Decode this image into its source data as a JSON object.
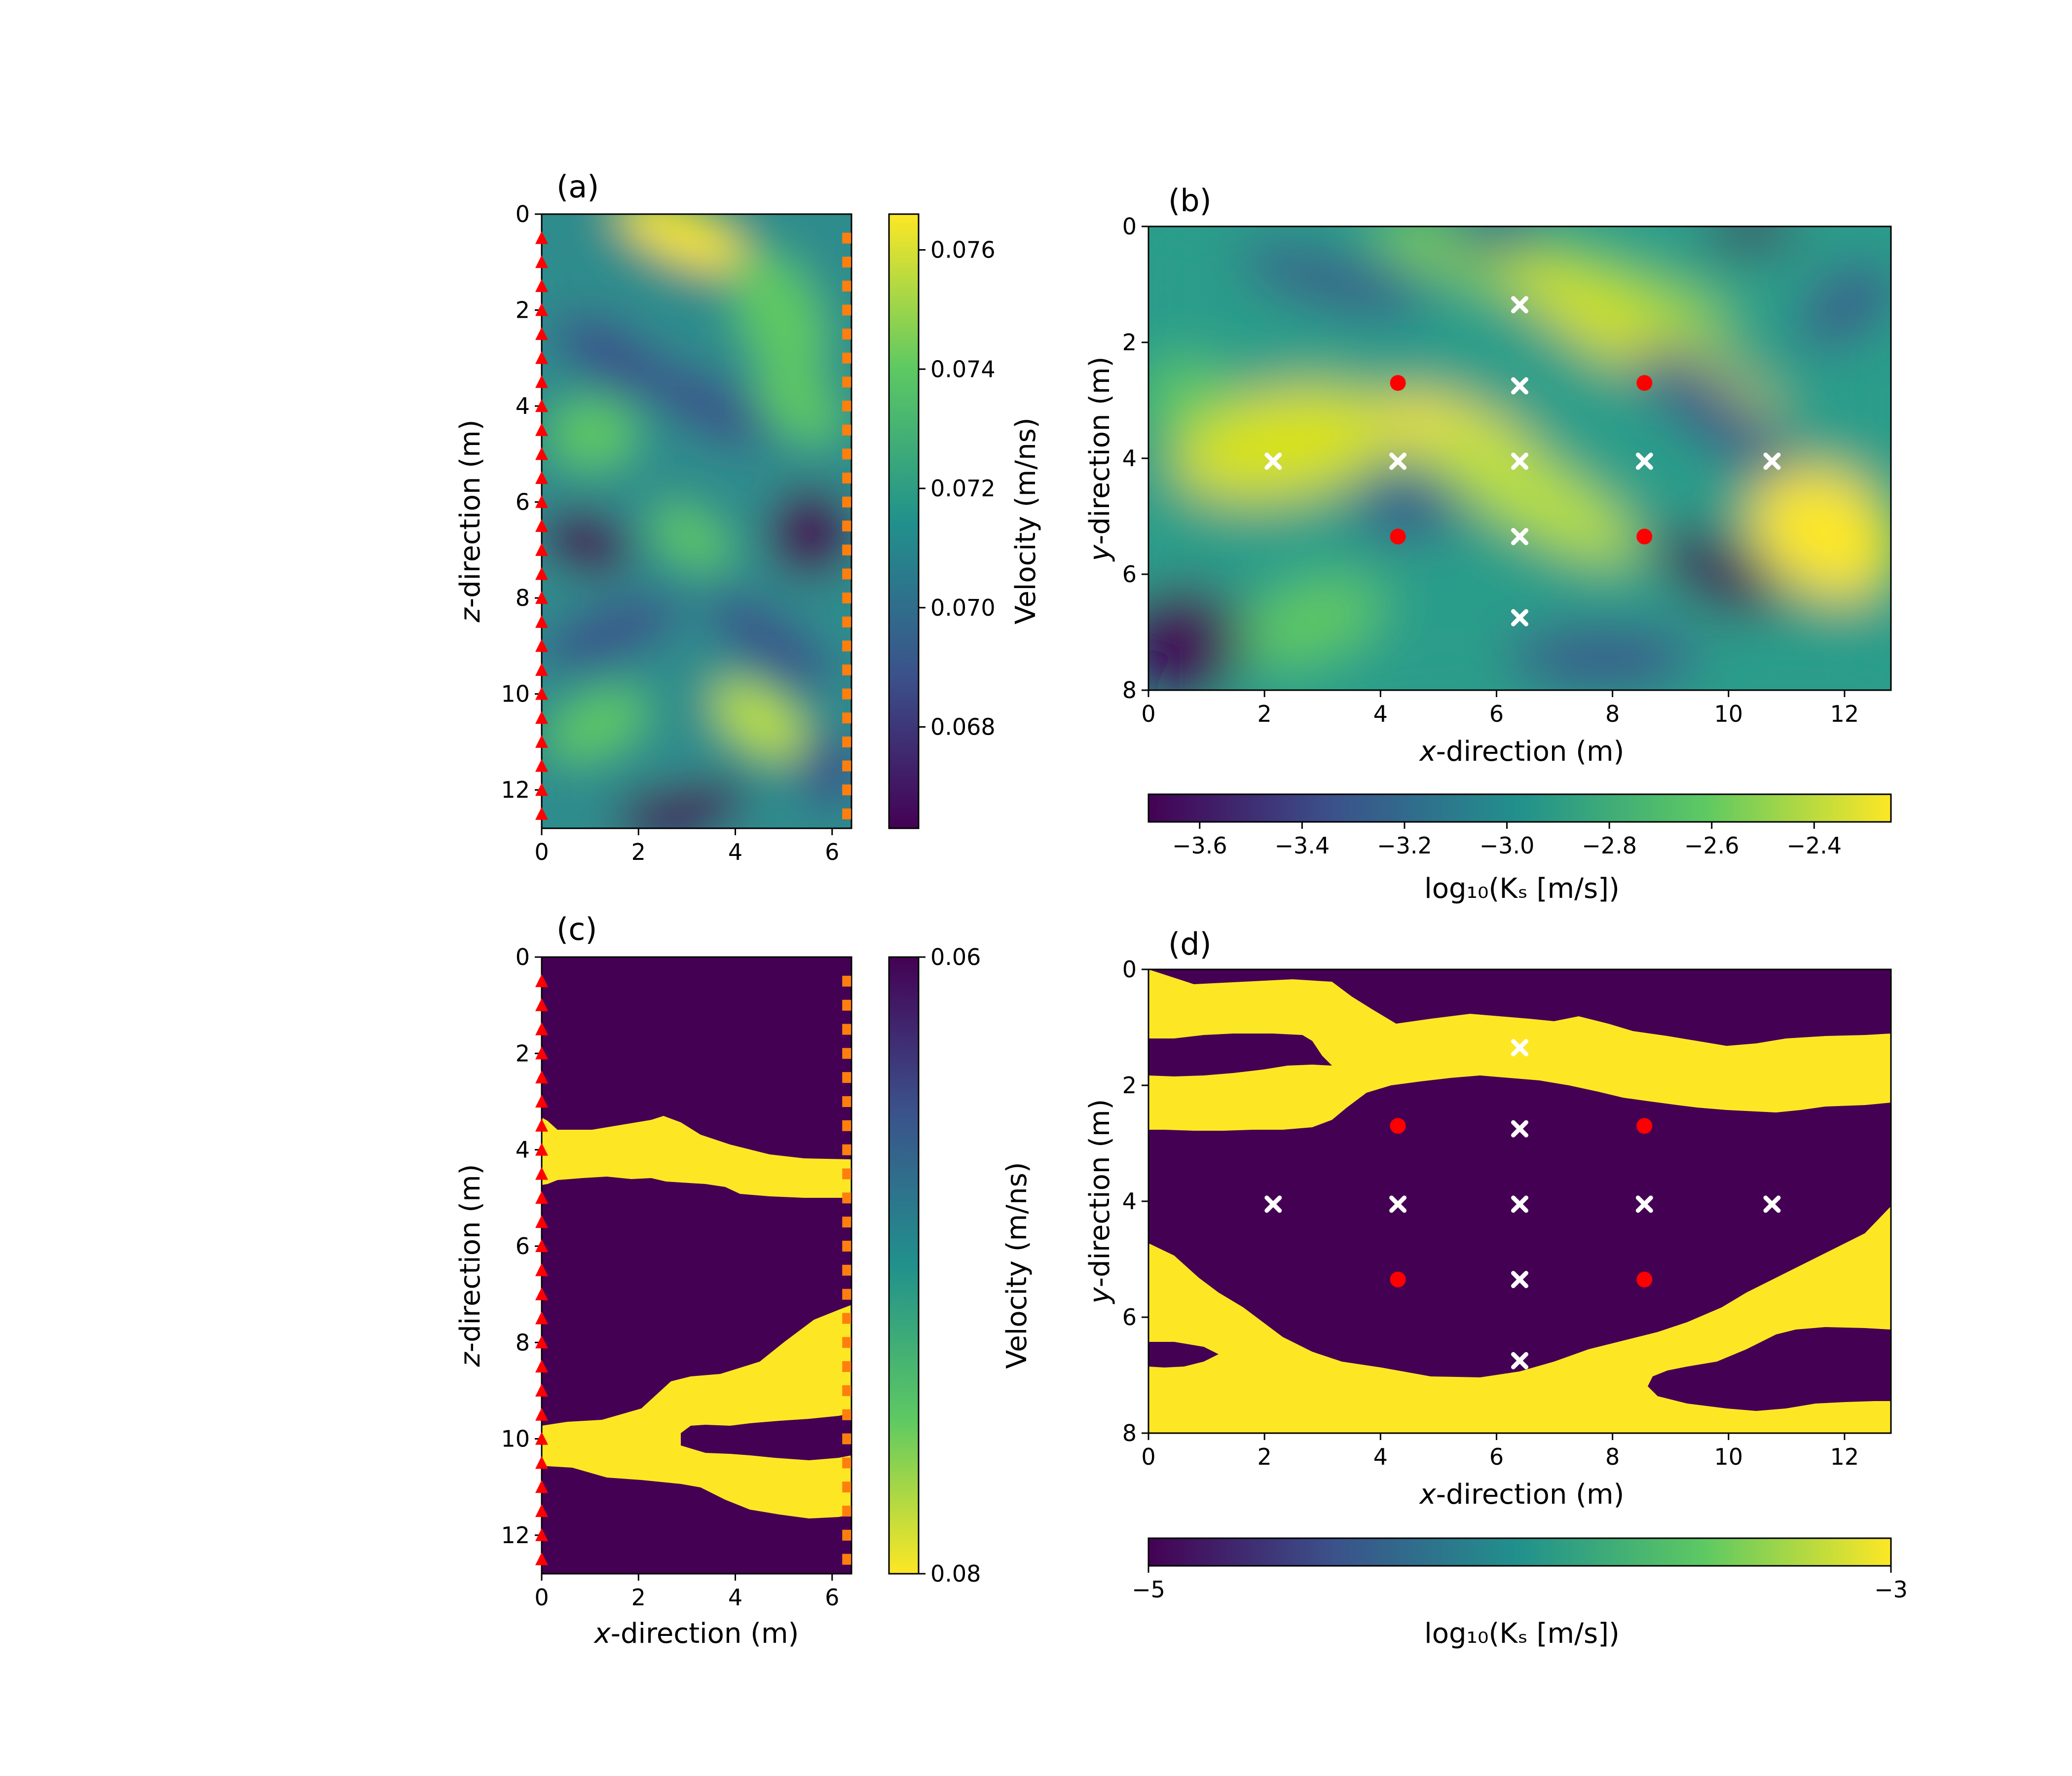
{
  "panels": {
    "a": {
      "label": "(a)",
      "ylabel_italic": "z",
      "ylabel_rest": "-direction (m)",
      "xlabel_italic": "",
      "xlabel_rest": "",
      "cbar_label": "Velocity (m/ns)"
    },
    "b": {
      "label": "(b)",
      "ylabel_italic": "y",
      "ylabel_rest": "-direction (m)",
      "xlabel_italic": "x",
      "xlabel_rest": "-direction (m)",
      "cbar_label": "log₁₀(Kₛ [m/s])"
    },
    "c": {
      "label": "(c)",
      "ylabel_italic": "z",
      "ylabel_rest": "-direction (m)",
      "xlabel_italic": "x",
      "xlabel_rest": "-direction (m)",
      "cbar_label": "Velocity (m/ns)"
    },
    "d": {
      "label": "(d)",
      "ylabel_italic": "y",
      "ylabel_rest": "-direction (m)",
      "xlabel_italic": "x",
      "xlabel_rest": "-direction (m)",
      "cbar_label": "log₁₀(Kₛ [m/s])"
    }
  },
  "colors": {
    "colormap": "viridis",
    "viridis_low": "#440154",
    "viridis_high": "#fde725",
    "transmitter": "#ff0000",
    "receiver": "#ff7f0e",
    "pumping_well": "#ff0000",
    "observation_well": "#ffffff"
  },
  "chart_data": [
    {
      "panel": "a",
      "type": "heatmap",
      "field": "continuous velocity",
      "x_ticks": [
        "0",
        "2",
        "4",
        "6"
      ],
      "y_ticks": [
        "0",
        "2",
        "4",
        "6",
        "8",
        "10",
        "12"
      ],
      "xlim": [
        0,
        6.4
      ],
      "ylim": [
        12.8,
        0
      ],
      "y_inverted": true,
      "colorbar": {
        "orientation": "vertical",
        "range": [
          0.0663,
          0.0766
        ],
        "ticks": [
          "0.068",
          "0.070",
          "0.072",
          "0.074",
          "0.076"
        ]
      },
      "transmitters": {
        "marker": "triangle",
        "x": 0.0,
        "z": [
          0.5,
          1.0,
          1.5,
          2.0,
          2.5,
          3.0,
          3.5,
          4.0,
          4.5,
          5.0,
          5.5,
          6.0,
          6.5,
          7.0,
          7.5,
          8.0,
          8.5,
          9.0,
          9.5,
          10.0,
          10.5,
          11.0,
          11.5,
          12.0,
          12.5
        ]
      },
      "receivers": {
        "marker": "square",
        "x": 6.3,
        "z": [
          0.5,
          1.0,
          1.5,
          2.0,
          2.5,
          3.0,
          3.5,
          4.0,
          4.5,
          5.0,
          5.5,
          6.0,
          6.5,
          7.0,
          7.5,
          8.0,
          8.5,
          9.0,
          9.5,
          10.0,
          10.5,
          11.0,
          11.5,
          12.0,
          12.5
        ]
      }
    },
    {
      "panel": "b",
      "type": "heatmap",
      "field": "continuous log10 Ks",
      "x_ticks": [
        "0",
        "2",
        "4",
        "6",
        "8",
        "10",
        "12"
      ],
      "y_ticks": [
        "0",
        "2",
        "4",
        "6",
        "8"
      ],
      "xlim": [
        0,
        12.8
      ],
      "ylim": [
        8,
        0
      ],
      "y_inverted": true,
      "colorbar": {
        "orientation": "horizontal",
        "range": [
          -3.7,
          -2.25
        ],
        "ticks": [
          "−3.6",
          "−3.4",
          "−3.2",
          "−3.0",
          "−2.8",
          "−2.6",
          "−2.4"
        ]
      },
      "pumping_wells": {
        "marker": "circle",
        "points": [
          [
            4.3,
            2.7
          ],
          [
            8.55,
            2.7
          ],
          [
            4.3,
            5.35
          ],
          [
            8.55,
            5.35
          ]
        ]
      },
      "observation_wells": {
        "marker": "x",
        "points": [
          [
            6.4,
            1.35
          ],
          [
            6.4,
            2.75
          ],
          [
            2.15,
            4.05
          ],
          [
            4.3,
            4.05
          ],
          [
            6.4,
            4.05
          ],
          [
            8.55,
            4.05
          ],
          [
            10.75,
            4.05
          ],
          [
            6.4,
            5.35
          ],
          [
            6.4,
            6.75
          ]
        ]
      }
    },
    {
      "panel": "c",
      "type": "heatmap",
      "field": "binary velocity",
      "x_ticks": [
        "0",
        "2",
        "4",
        "6"
      ],
      "y_ticks": [
        "0",
        "2",
        "4",
        "6",
        "8",
        "10",
        "12"
      ],
      "xlim": [
        0,
        6.4
      ],
      "ylim": [
        12.8,
        0
      ],
      "y_inverted": true,
      "colorbar": {
        "orientation": "vertical",
        "range": [
          0.06,
          0.08
        ],
        "ticks": [
          "0.06",
          "0.08"
        ],
        "reversed": true
      },
      "transmitters": {
        "marker": "triangle",
        "x": 0.0,
        "z": [
          0.5,
          1.0,
          1.5,
          2.0,
          2.5,
          3.0,
          3.5,
          4.0,
          4.5,
          5.0,
          5.5,
          6.0,
          6.5,
          7.0,
          7.5,
          8.0,
          8.5,
          9.0,
          9.5,
          10.0,
          10.5,
          11.0,
          11.5,
          12.0,
          12.5
        ]
      },
      "receivers": {
        "marker": "square",
        "x": 6.3,
        "z": [
          0.5,
          1.0,
          1.5,
          2.0,
          2.5,
          3.0,
          3.5,
          4.0,
          4.5,
          5.0,
          5.5,
          6.0,
          6.5,
          7.0,
          7.5,
          8.0,
          8.5,
          9.0,
          9.5,
          10.0,
          10.5,
          11.0,
          11.5,
          12.0,
          12.5
        ]
      }
    },
    {
      "panel": "d",
      "type": "heatmap",
      "field": "binary log10 Ks",
      "x_ticks": [
        "0",
        "2",
        "4",
        "6",
        "8",
        "10",
        "12"
      ],
      "y_ticks": [
        "0",
        "2",
        "4",
        "6",
        "8"
      ],
      "xlim": [
        0,
        12.8
      ],
      "ylim": [
        8,
        0
      ],
      "y_inverted": true,
      "colorbar": {
        "orientation": "horizontal",
        "range": [
          -5,
          -3
        ],
        "ticks": [
          "−5",
          "−3"
        ]
      },
      "pumping_wells": {
        "marker": "circle",
        "points": [
          [
            4.3,
            2.7
          ],
          [
            8.55,
            2.7
          ],
          [
            4.3,
            5.35
          ],
          [
            8.55,
            5.35
          ]
        ]
      },
      "observation_wells": {
        "marker": "x",
        "points": [
          [
            6.4,
            1.35
          ],
          [
            6.4,
            2.75
          ],
          [
            2.15,
            4.05
          ],
          [
            4.3,
            4.05
          ],
          [
            6.4,
            4.05
          ],
          [
            8.55,
            4.05
          ],
          [
            10.75,
            4.05
          ],
          [
            6.4,
            5.35
          ],
          [
            6.4,
            6.75
          ]
        ]
      }
    }
  ]
}
